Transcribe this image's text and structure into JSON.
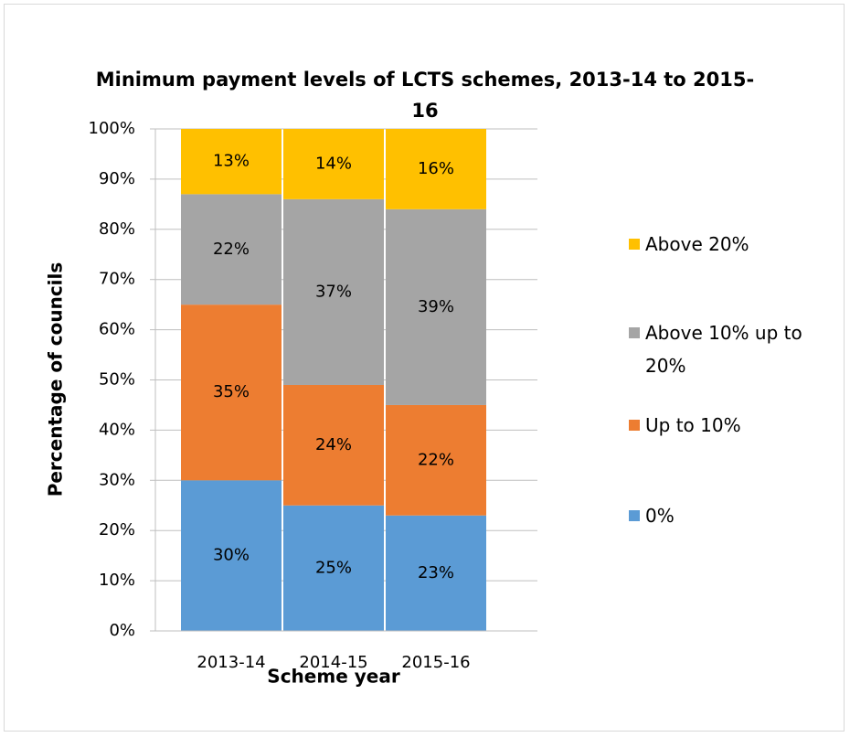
{
  "chart_data": {
    "type": "stacked_bar",
    "title": "Minimum payment levels of LCTS schemes, 2013-14 to 2015-16",
    "x_label": "Scheme year",
    "y_label": "Percentage of councils",
    "categories": [
      "2013-14",
      "2014-15",
      "2015-16"
    ],
    "series": [
      {
        "name": "0%",
        "color": "#5b9bd5",
        "values": [
          30,
          25,
          23
        ],
        "value_labels": [
          "30%",
          "25%",
          "23%"
        ]
      },
      {
        "name": "Up to 10%",
        "color": "#ed7d31",
        "values": [
          35,
          24,
          22
        ],
        "value_labels": [
          "35%",
          "24%",
          "22%"
        ]
      },
      {
        "name": "Above 10% up to 20%",
        "color": "#a5a5a5",
        "values": [
          22,
          37,
          39
        ],
        "value_labels": [
          "22%",
          "37%",
          "39%"
        ]
      },
      {
        "name": "Above 20%",
        "color": "#ffc000",
        "values": [
          13,
          14,
          16
        ],
        "value_labels": [
          "13%",
          "14%",
          "16%"
        ]
      }
    ],
    "ylim": [
      0,
      100
    ],
    "yticks": [
      {
        "value": 0,
        "label": "0%"
      },
      {
        "value": 10,
        "label": "10%"
      },
      {
        "value": 20,
        "label": "20%"
      },
      {
        "value": 30,
        "label": "30%"
      },
      {
        "value": 40,
        "label": "40%"
      },
      {
        "value": 50,
        "label": "50%"
      },
      {
        "value": 60,
        "label": "60%"
      },
      {
        "value": 70,
        "label": "70%"
      },
      {
        "value": 80,
        "label": "80%"
      },
      {
        "value": 90,
        "label": "90%"
      },
      {
        "value": 100,
        "label": "100%"
      }
    ],
    "grid": true,
    "legend": "right"
  }
}
